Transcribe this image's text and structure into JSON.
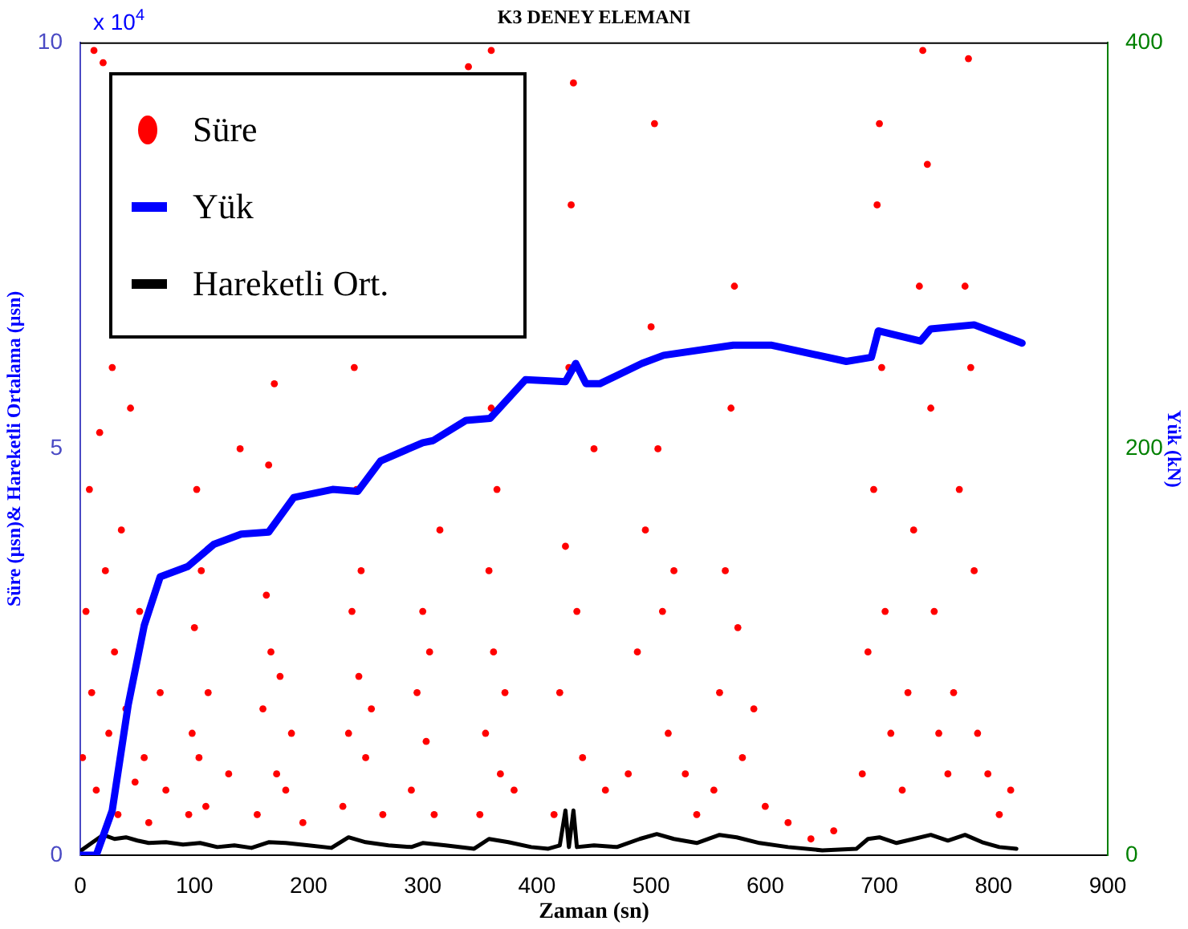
{
  "chart_data": {
    "type": "scatter",
    "title": "K3 DENEY ELEMANI",
    "xlabel": "Zaman (sn)",
    "ylabel": "Süre (µsn)& Hareketli Ortalama (µsn)",
    "y2label": "Yük (kN)",
    "annotations": [
      "x 10$^{4}$"
    ],
    "xlim": [
      0,
      900
    ],
    "xticks": [
      0,
      100,
      200,
      300,
      400,
      500,
      600,
      700,
      800,
      900
    ],
    "ylim": [
      0,
      10
    ],
    "yticks": [
      0,
      5,
      10
    ],
    "y2lim": [
      0,
      400
    ],
    "y2ticks": [
      0,
      200,
      400
    ],
    "grid": false,
    "legend": "top left",
    "series": [
      {
        "name": "Süre",
        "marker": "circle",
        "color": "#ff0000",
        "x": [
          2,
          5,
          8,
          10,
          12,
          14,
          17,
          20,
          22,
          25,
          28,
          30,
          33,
          36,
          40,
          44,
          48,
          52,
          56,
          60,
          70,
          75,
          95,
          98,
          100,
          102,
          104,
          106,
          110,
          112,
          130,
          140,
          155,
          160,
          163,
          165,
          167,
          170,
          172,
          175,
          180,
          185,
          195,
          230,
          235,
          238,
          240,
          242,
          244,
          246,
          250,
          255,
          265,
          290,
          295,
          300,
          303,
          306,
          310,
          315,
          340,
          350,
          355,
          358,
          360,
          362,
          365,
          368,
          372,
          380,
          360,
          415,
          420,
          425,
          428,
          430,
          432,
          435,
          440,
          450,
          460,
          480,
          488,
          495,
          500,
          503,
          506,
          510,
          515,
          520,
          530,
          540,
          555,
          560,
          565,
          570,
          573,
          576,
          580,
          590,
          600,
          620,
          640,
          660,
          685,
          690,
          695,
          698,
          700,
          702,
          705,
          710,
          720,
          725,
          730,
          735,
          738,
          742,
          745,
          748,
          752,
          760,
          765,
          770,
          775,
          778,
          780,
          783,
          786,
          795,
          805,
          815
        ],
        "values": [
          1.2,
          3,
          4.5,
          2,
          9.9,
          0.8,
          5.2,
          9.75,
          3.5,
          1.5,
          6,
          2.5,
          0.5,
          4,
          1.8,
          5.5,
          0.9,
          3,
          1.2,
          0.4,
          2,
          0.8,
          0.5,
          1.5,
          2.8,
          4.5,
          1.2,
          3.5,
          0.6,
          2,
          1,
          5,
          0.5,
          1.8,
          3.2,
          4.8,
          2.5,
          5.8,
          1,
          2.2,
          0.8,
          1.5,
          0.4,
          0.6,
          1.5,
          3,
          6,
          4.5,
          2.2,
          3.5,
          1.2,
          1.8,
          0.5,
          0.8,
          2,
          3,
          1.4,
          2.5,
          0.5,
          4,
          9.7,
          0.5,
          1.5,
          3.5,
          5.5,
          2.5,
          4.5,
          1,
          2,
          0.8,
          9.9,
          0.5,
          2,
          3.8,
          6,
          8,
          9.5,
          3,
          1.2,
          5,
          0.8,
          1,
          2.5,
          4,
          6.5,
          9,
          5,
          3,
          1.5,
          3.5,
          1,
          0.5,
          0.8,
          2,
          3.5,
          5.5,
          7,
          2.8,
          1.2,
          1.8,
          0.6,
          0.4,
          0.2,
          0.3,
          1,
          2.5,
          4.5,
          8,
          9,
          6,
          3,
          1.5,
          0.8,
          2,
          4,
          7,
          9.9,
          8.5,
          5.5,
          3,
          1.5,
          1,
          2,
          4.5,
          7,
          9.8,
          6,
          3.5,
          1.5,
          1,
          0.5,
          0.8
        ]
      },
      {
        "name": "Yük",
        "type": "line",
        "axis": "y2",
        "marker": "none",
        "color": "#0000ff",
        "x": [
          0,
          14,
          28,
          42,
          56,
          70,
          94,
          117,
          141,
          165,
          187,
          221,
          243,
          263,
          300,
          309,
          338,
          359,
          390,
          425,
          434,
          443,
          455,
          492,
          511,
          572,
          605,
          671,
          693,
          699,
          736,
          745,
          783,
          825
        ],
        "values": [
          0,
          0,
          22,
          74,
          113,
          137,
          142,
          153,
          158,
          159,
          176,
          180,
          179,
          194,
          203,
          204,
          214,
          215,
          234,
          233,
          242,
          232,
          232,
          242,
          246,
          251,
          251,
          243,
          245,
          258,
          253,
          259,
          261,
          252
        ]
      },
      {
        "name": "Hareketli Ort.",
        "type": "line",
        "marker": "none",
        "color": "#000000",
        "x": [
          0,
          10,
          20,
          30,
          40,
          50,
          60,
          75,
          90,
          105,
          120,
          135,
          150,
          165,
          180,
          200,
          220,
          235,
          250,
          270,
          290,
          300,
          320,
          345,
          358,
          375,
          395,
          410,
          420,
          425,
          428,
          432,
          435,
          450,
          470,
          490,
          505,
          520,
          540,
          560,
          575,
          595,
          620,
          650,
          680,
          690,
          700,
          715,
          730,
          745,
          760,
          775,
          790,
          805,
          820
        ],
        "values": [
          0.05,
          0.15,
          0.25,
          0.2,
          0.22,
          0.18,
          0.15,
          0.16,
          0.13,
          0.15,
          0.1,
          0.12,
          0.09,
          0.16,
          0.15,
          0.12,
          0.09,
          0.22,
          0.16,
          0.12,
          0.1,
          0.15,
          0.12,
          0.08,
          0.2,
          0.16,
          0.1,
          0.08,
          0.12,
          0.55,
          0.1,
          0.55,
          0.1,
          0.12,
          0.1,
          0.2,
          0.26,
          0.2,
          0.15,
          0.25,
          0.22,
          0.15,
          0.1,
          0.06,
          0.08,
          0.2,
          0.22,
          0.15,
          0.2,
          0.25,
          0.18,
          0.25,
          0.16,
          0.1,
          0.08
        ]
      }
    ]
  }
}
